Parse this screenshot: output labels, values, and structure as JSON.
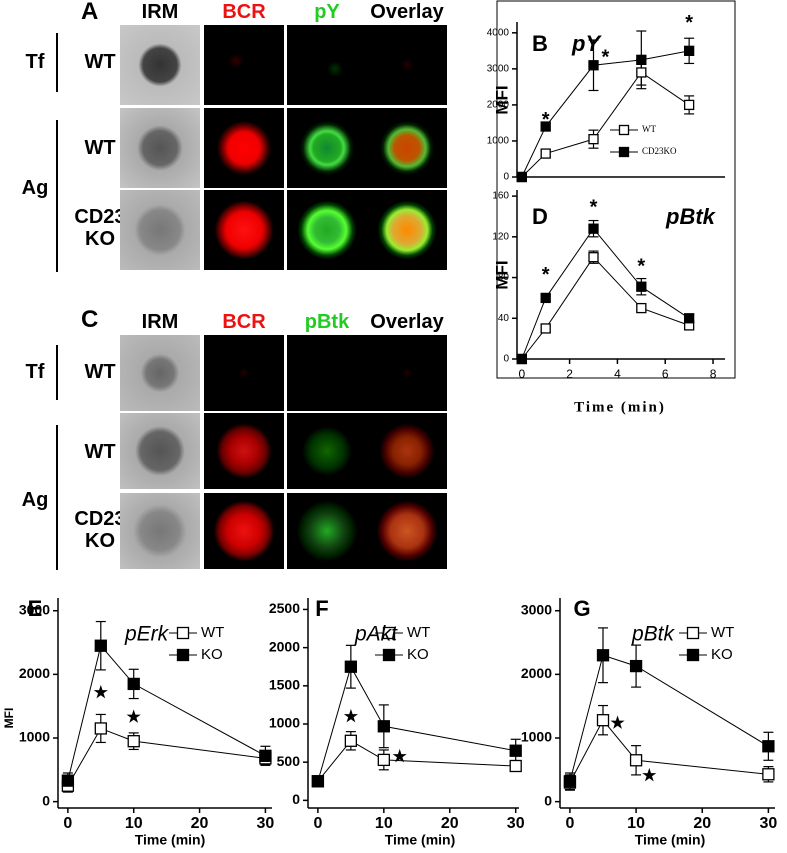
{
  "figure_panels": [
    {
      "letter": "A",
      "columns": [
        {
          "text": "IRM",
          "color": "#000000"
        },
        {
          "text": "BCR",
          "color": "#ee1111"
        },
        {
          "text": "pY",
          "color": "#22cc22"
        },
        {
          "text": "Overlay",
          "color": "#000000"
        }
      ],
      "row_groups": [
        {
          "label": "Tf",
          "rows": [
            "WT"
          ]
        },
        {
          "label": "Ag",
          "rows": [
            "WT",
            "CD23 KO"
          ]
        }
      ]
    },
    {
      "letter": "C",
      "columns": [
        {
          "text": "IRM",
          "color": "#000000"
        },
        {
          "text": "BCR",
          "color": "#ee1111"
        },
        {
          "text": "pBtk",
          "color": "#22cc22"
        },
        {
          "text": "Overlay",
          "color": "#000000"
        }
      ],
      "row_groups": [
        {
          "label": "Tf",
          "rows": [
            "WT"
          ]
        },
        {
          "label": "Ag",
          "rows": [
            "WT",
            "CD23 KO"
          ]
        }
      ]
    }
  ],
  "chart_data": [
    {
      "type": "line",
      "letter": "B",
      "title": "pY",
      "ylabel": "MFI",
      "x": [
        0,
        1,
        3,
        5,
        7
      ],
      "xlim": [
        -0.2,
        8.5
      ],
      "ylim": [
        0,
        4300
      ],
      "yticks": [
        0,
        1000,
        2000,
        3000,
        4000
      ],
      "series": [
        {
          "name": "WT",
          "color": "#000000",
          "marker": "open-square",
          "values": [
            0,
            650,
            1050,
            2900,
            2000
          ],
          "errors": [
            0,
            80,
            250,
            350,
            250
          ]
        },
        {
          "name": "CD23KO",
          "color": "#000000",
          "marker": "filled-square",
          "values": [
            0,
            1400,
            3100,
            3250,
            3500
          ],
          "errors": [
            0,
            100,
            700,
            800,
            350
          ]
        }
      ],
      "annotations": [
        {
          "text": "*",
          "x": 1,
          "y": 1560
        },
        {
          "text": "*",
          "x": 3.5,
          "y": 3300
        },
        {
          "text": "*",
          "x": 7,
          "y": 4250
        }
      ]
    },
    {
      "type": "line",
      "letter": "D",
      "title": "pBtk",
      "ylabel": "MFI",
      "xlabel": "Time (min)",
      "x": [
        0,
        1,
        3,
        5,
        7
      ],
      "xlim": [
        -0.2,
        8.5
      ],
      "xticks": [
        0,
        2,
        4,
        6,
        8
      ],
      "ylim": [
        0,
        166
      ],
      "yticks": [
        0,
        40,
        80,
        120,
        160
      ],
      "series": [
        {
          "name": "WT",
          "color": "#000000",
          "marker": "open-square",
          "values": [
            0,
            30,
            100,
            50,
            33
          ],
          "errors": [
            0,
            3,
            6,
            3,
            3
          ]
        },
        {
          "name": "CD23KO",
          "color": "#000000",
          "marker": "filled-square",
          "values": [
            0,
            60,
            128,
            71,
            40
          ],
          "errors": [
            0,
            3,
            8,
            8,
            4
          ]
        }
      ],
      "annotations": [
        {
          "text": "*",
          "x": 1,
          "y": 82
        },
        {
          "text": "*",
          "x": 3,
          "y": 148
        },
        {
          "text": "*",
          "x": 5,
          "y": 90
        }
      ]
    },
    {
      "type": "line",
      "letter": "E",
      "title": "pErk",
      "ylabel": "MFI",
      "xlabel": "Time (min)",
      "x": [
        0,
        5,
        10,
        30
      ],
      "xlim": [
        -1.5,
        31
      ],
      "xticks": [
        0,
        10,
        20,
        30
      ],
      "ylim": [
        -100,
        3200
      ],
      "yticks": [
        0,
        1000,
        2000,
        3000
      ],
      "series": [
        {
          "name": "WT",
          "color": "#000000",
          "marker": "open-square",
          "values": [
            250,
            1150,
            950,
            680
          ],
          "errors": [
            100,
            220,
            130,
            100
          ]
        },
        {
          "name": "KO",
          "color": "#000000",
          "marker": "filled-square",
          "values": [
            330,
            2450,
            1850,
            720
          ],
          "errors": [
            120,
            380,
            230,
            150
          ]
        }
      ],
      "annotations": [
        {
          "text": "★",
          "x": 5,
          "y": 1700
        },
        {
          "text": "★",
          "x": 10,
          "y": 1320
        }
      ]
    },
    {
      "type": "line",
      "letter": "F",
      "title": "pAkt",
      "xlabel": "Time (min)",
      "x": [
        0,
        5,
        10,
        30
      ],
      "xlim": [
        -1.5,
        30.5
      ],
      "xticks": [
        0,
        10,
        20,
        30
      ],
      "ylim": [
        -100,
        2650
      ],
      "yticks": [
        0,
        500,
        1000,
        1500,
        2000,
        2500
      ],
      "series": [
        {
          "name": "WT",
          "color": "#000000",
          "marker": "open-square",
          "values": [
            250,
            780,
            530,
            450
          ],
          "errors": [
            60,
            120,
            130,
            60
          ]
        },
        {
          "name": "KO",
          "color": "#000000",
          "marker": "filled-square",
          "values": [
            250,
            1750,
            970,
            650
          ],
          "errors": [
            60,
            280,
            280,
            150
          ]
        }
      ],
      "annotations": [
        {
          "text": "★",
          "x": 5,
          "y": 1090
        },
        {
          "text": "★",
          "x": 12.4,
          "y": 565
        }
      ]
    },
    {
      "type": "line",
      "letter": "G",
      "title": "pBtk",
      "xlabel": "Time (min)",
      "x": [
        0,
        5,
        10,
        30
      ],
      "xlim": [
        -1.5,
        31
      ],
      "xticks": [
        0,
        10,
        20,
        30
      ],
      "ylim": [
        -100,
        3200
      ],
      "yticks": [
        0,
        1000,
        2000,
        3000
      ],
      "series": [
        {
          "name": "WT",
          "color": "#000000",
          "marker": "open-square",
          "values": [
            300,
            1280,
            650,
            430
          ],
          "errors": [
            120,
            230,
            230,
            120
          ]
        },
        {
          "name": "KO",
          "color": "#000000",
          "marker": "filled-square",
          "values": [
            320,
            2300,
            2130,
            870
          ],
          "errors": [
            130,
            430,
            330,
            220
          ]
        }
      ],
      "annotations": [
        {
          "text": "★",
          "x": 7.2,
          "y": 1220
        },
        {
          "text": "★",
          "x": 12,
          "y": 400
        }
      ]
    }
  ]
}
